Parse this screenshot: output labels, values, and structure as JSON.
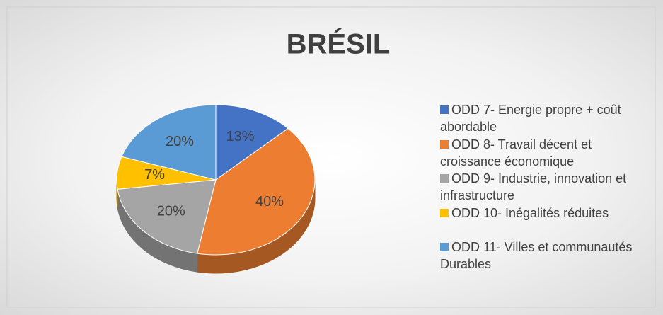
{
  "chart_data": {
    "type": "pie",
    "title": "BRÉSIL",
    "categories": [
      "ODD 7- Energie propre + coût abordable",
      "ODD 8- Travail décent et croissance économique",
      "ODD 9- Industrie, innovation et infrastructure",
      "ODD 10- Inégalités réduites",
      "ODD 11- Villes et communautés Durables"
    ],
    "values": [
      13,
      40,
      20,
      7,
      20
    ],
    "value_labels": [
      "13%",
      "40%",
      "20%",
      "7%",
      "20%"
    ],
    "colors": [
      "#4472c4",
      "#ed7d31",
      "#a5a5a5",
      "#ffc000",
      "#5b9bd5"
    ],
    "legend": "right"
  }
}
